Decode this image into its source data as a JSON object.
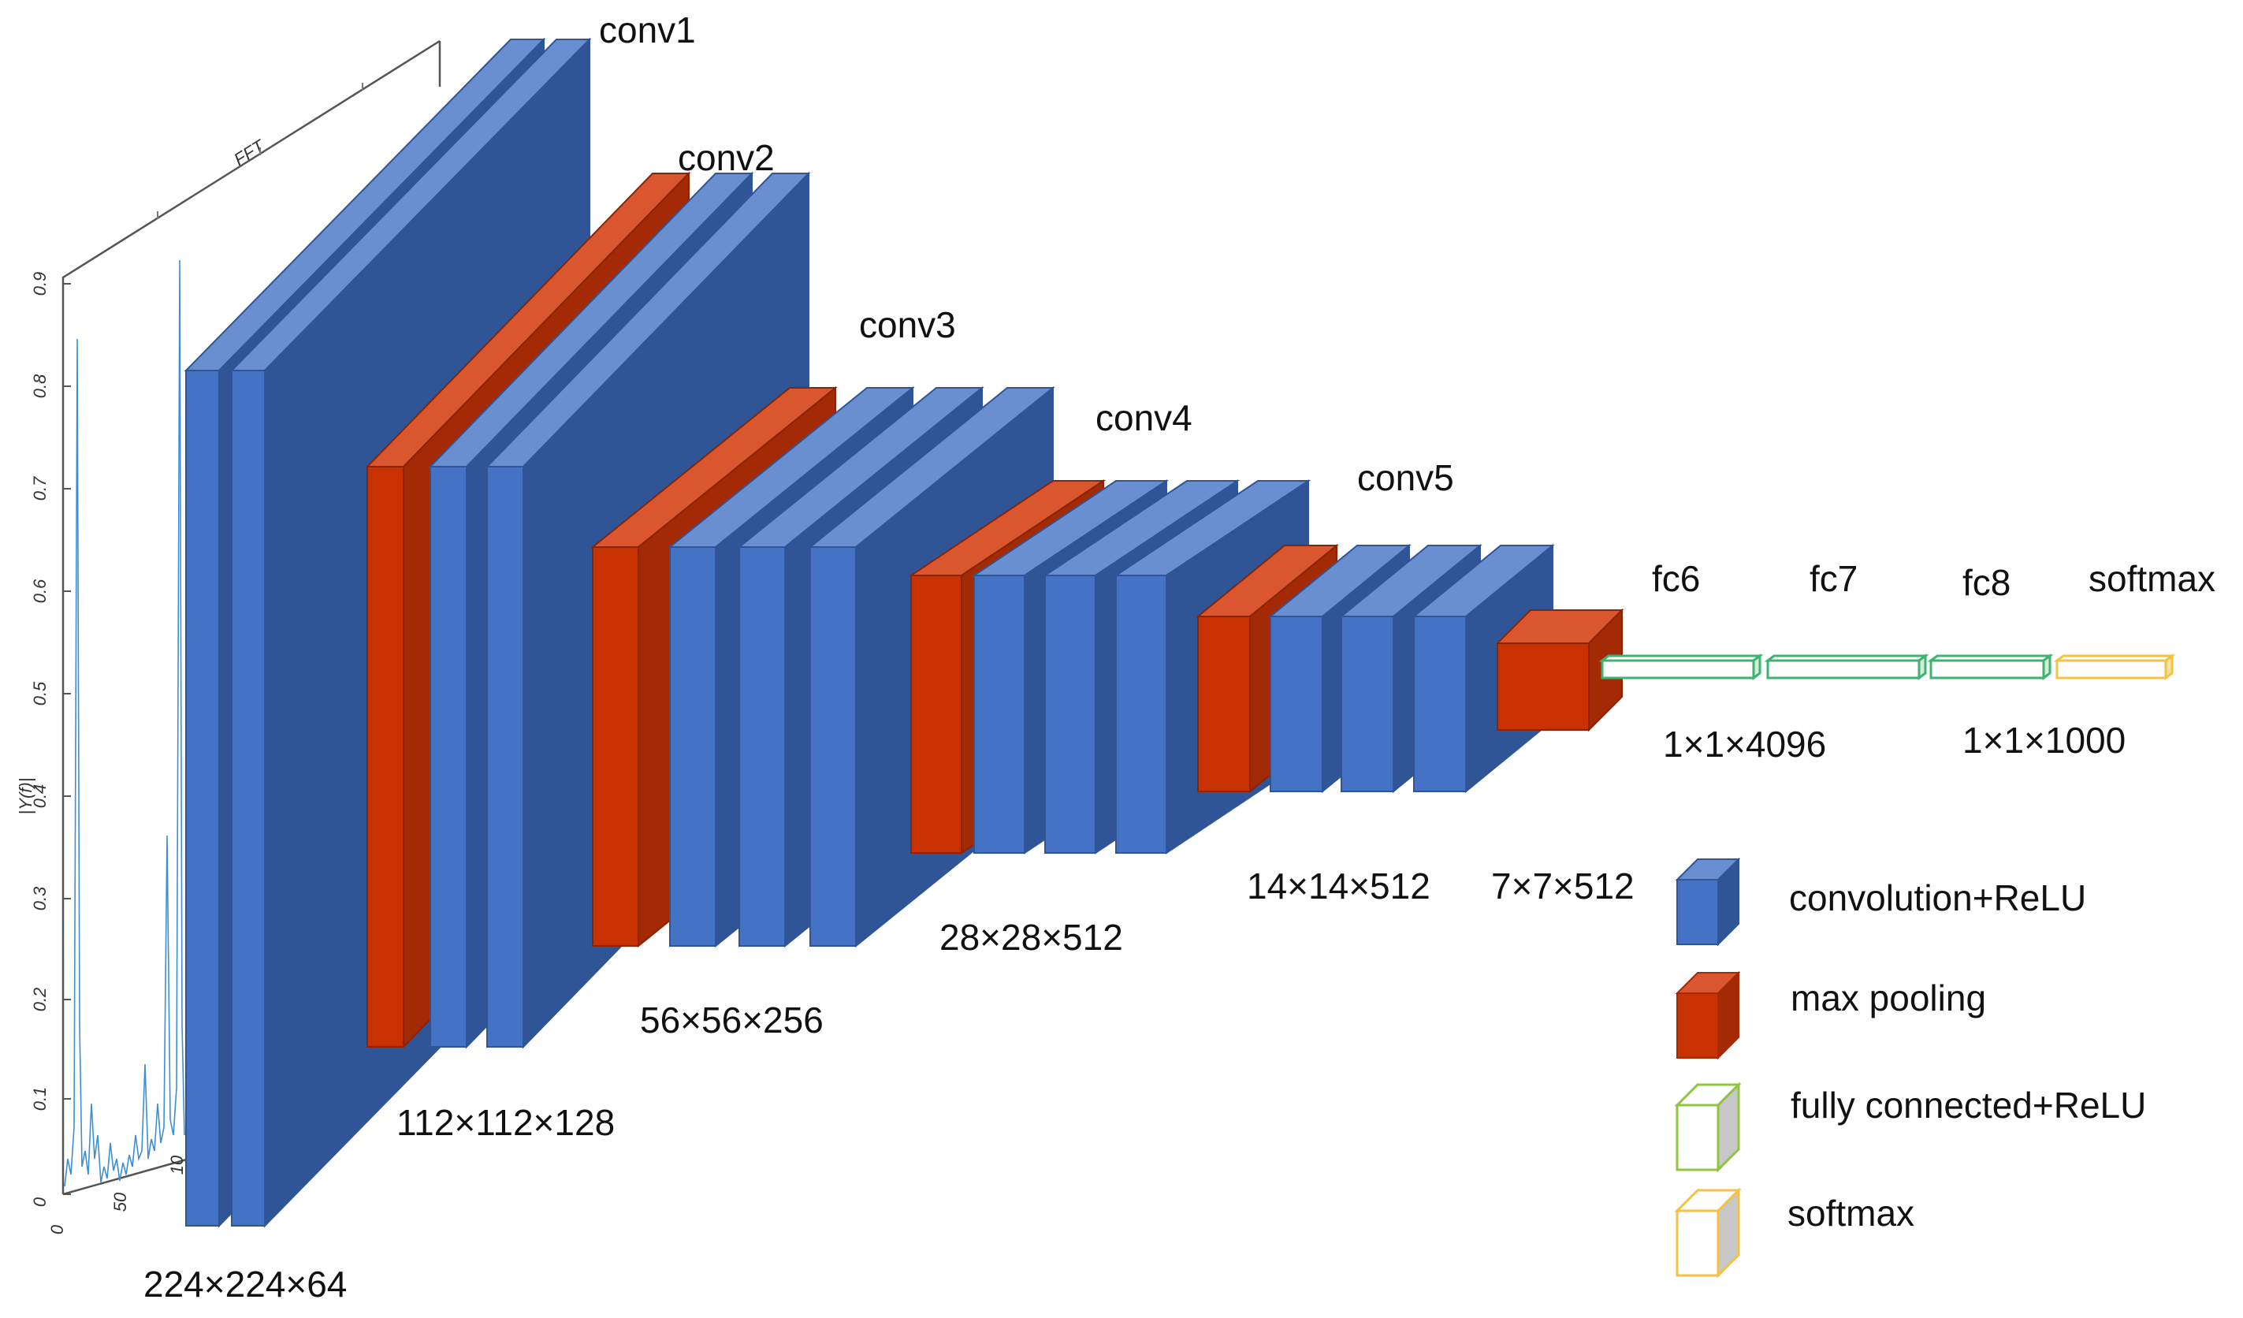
{
  "stages": {
    "conv1": "conv1",
    "conv2": "conv2",
    "conv3": "conv3",
    "conv4": "conv4",
    "conv5": "conv5",
    "fc6": "fc6",
    "fc7": "fc7",
    "fc8": "fc8",
    "softmax": "softmax"
  },
  "dimensions": {
    "d224": "224×224×64",
    "d112": "112×112×128",
    "d56": "56×56×256",
    "d28": "28×28×512",
    "d14": "14×14×512",
    "d7": "7×7×512",
    "fc": "1×1×4096",
    "sm": "1×1×1000"
  },
  "legend": {
    "conv": "convolution+ReLU",
    "pool": "max pooling",
    "fc": "fully connected+ReLU",
    "softmax": "softmax"
  },
  "fft_panel": {
    "title": "FFT",
    "y_label": "|Y(f)|",
    "y_ticks": [
      "0",
      "0.1",
      "0.2",
      "0.3",
      "0.4",
      "0.5",
      "0.6",
      "0.7",
      "0.8",
      "0.9"
    ],
    "x_ticks": [
      "0",
      "50",
      "10"
    ]
  },
  "colors": {
    "conv_front": "#4472c4",
    "conv_top": "#6a8fd0",
    "conv_side": "#2f5597",
    "pool_front": "#c83200",
    "pool_top": "#d9562e",
    "pool_side": "#a32a05",
    "fc_outline": "#3cb371",
    "softmax_outline": "#f5c242",
    "signal": "#3d8fd1"
  }
}
